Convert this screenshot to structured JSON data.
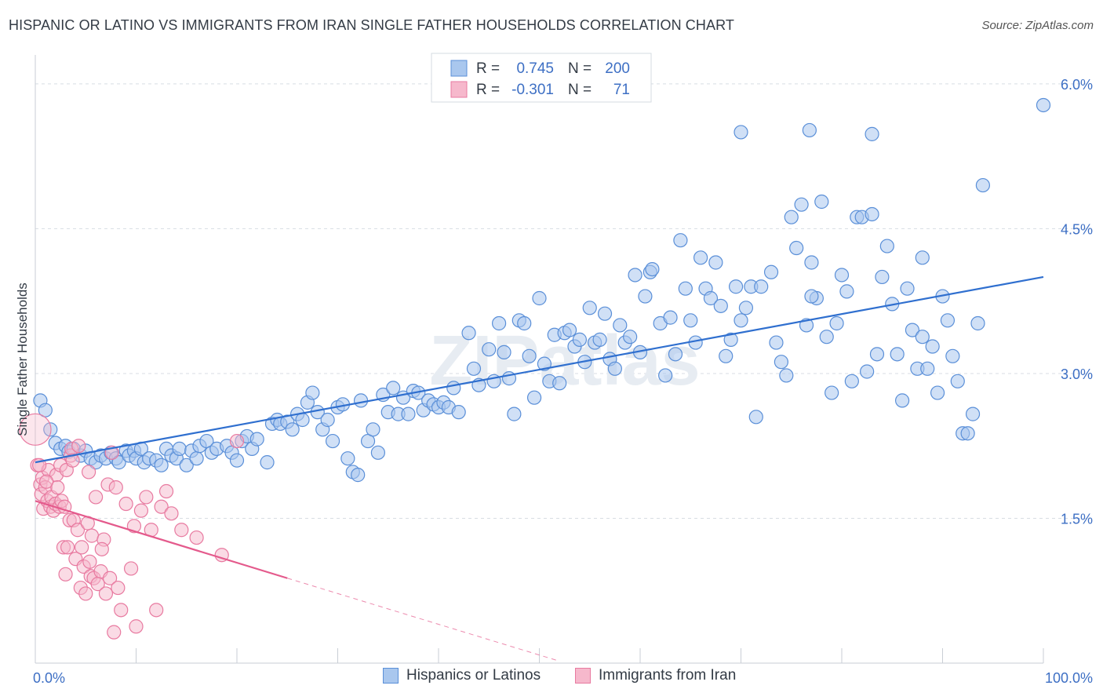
{
  "title": "HISPANIC OR LATINO VS IMMIGRANTS FROM IRAN SINGLE FATHER HOUSEHOLDS CORRELATION CHART",
  "source": "Source: ZipAtlas.com",
  "watermark": "ZIPatlas",
  "colors": {
    "blue_fill": "#a9c7ee",
    "blue_stroke": "#5a8fd8",
    "blue_line": "#2f6fcf",
    "pink_fill": "#f6b8cc",
    "pink_stroke": "#e87aa0",
    "pink_line": "#e45a8c",
    "axis_label": "#3d6fc4",
    "grid": "#d8dde3"
  },
  "legend_top": [
    {
      "r_label": "R =",
      "r_value": "0.745",
      "n_label": "N =",
      "n_value": "200",
      "series": "blue"
    },
    {
      "r_label": "R =",
      "r_value": "-0.301",
      "n_label": "N =",
      "n_value": "71",
      "series": "pink"
    }
  ],
  "legend_bottom": [
    {
      "label": "Hispanics or Latinos",
      "series": "blue"
    },
    {
      "label": "Immigrants from Iran",
      "series": "pink"
    }
  ],
  "chart_data": {
    "type": "scatter",
    "title": "HISPANIC OR LATINO VS IMMIGRANTS FROM IRAN SINGLE FATHER HOUSEHOLDS CORRELATION CHART",
    "xlabel": "",
    "ylabel": "Single Father Households",
    "xlim": [
      0,
      100
    ],
    "ylim": [
      0,
      6.3
    ],
    "x_tick_labels": [
      "0.0%",
      "100.0%"
    ],
    "y_ticks": [
      1.5,
      3.0,
      4.5,
      6.0
    ],
    "y_tick_labels": [
      "1.5%",
      "3.0%",
      "4.5%",
      "6.0%"
    ],
    "grid": true,
    "legend_position": "top-center",
    "series": [
      {
        "name": "Hispanics or Latinos",
        "color": "#a9c7ee",
        "trend": {
          "x": [
            0,
            100
          ],
          "y": [
            2.08,
            4.0
          ]
        },
        "points": [
          [
            0.5,
            2.72
          ],
          [
            1,
            2.62
          ],
          [
            1.5,
            2.42
          ],
          [
            2,
            2.28
          ],
          [
            2.5,
            2.22
          ],
          [
            3,
            2.25
          ],
          [
            3.3,
            2.19
          ],
          [
            3.8,
            2.22
          ],
          [
            4.5,
            2.15
          ],
          [
            5,
            2.2
          ],
          [
            5.5,
            2.12
          ],
          [
            6,
            2.08
          ],
          [
            6.5,
            2.15
          ],
          [
            7,
            2.12
          ],
          [
            7.5,
            2.18
          ],
          [
            8,
            2.12
          ],
          [
            8.3,
            2.08
          ],
          [
            9,
            2.2
          ],
          [
            9.3,
            2.15
          ],
          [
            9.8,
            2.2
          ],
          [
            10,
            2.12
          ],
          [
            10.5,
            2.22
          ],
          [
            10.8,
            2.08
          ],
          [
            11.3,
            2.12
          ],
          [
            12,
            2.1
          ],
          [
            12.5,
            2.05
          ],
          [
            13,
            2.22
          ],
          [
            13.5,
            2.15
          ],
          [
            14,
            2.12
          ],
          [
            14.3,
            2.22
          ],
          [
            15,
            2.05
          ],
          [
            15.5,
            2.2
          ],
          [
            16,
            2.12
          ],
          [
            16.3,
            2.25
          ],
          [
            17,
            2.3
          ],
          [
            17.5,
            2.18
          ],
          [
            18,
            2.22
          ],
          [
            19,
            2.25
          ],
          [
            19.5,
            2.18
          ],
          [
            20,
            2.1
          ],
          [
            20.5,
            2.3
          ],
          [
            21,
            2.35
          ],
          [
            21.5,
            2.22
          ],
          [
            22,
            2.32
          ],
          [
            23,
            2.08
          ],
          [
            23.5,
            2.48
          ],
          [
            24,
            2.52
          ],
          [
            24.3,
            2.48
          ],
          [
            25,
            2.5
          ],
          [
            25.5,
            2.42
          ],
          [
            26,
            2.58
          ],
          [
            26.5,
            2.52
          ],
          [
            27,
            2.7
          ],
          [
            27.5,
            2.8
          ],
          [
            28,
            2.6
          ],
          [
            28.5,
            2.42
          ],
          [
            29,
            2.52
          ],
          [
            29.5,
            2.3
          ],
          [
            30,
            2.65
          ],
          [
            30.5,
            2.68
          ],
          [
            31,
            2.12
          ],
          [
            31.5,
            1.98
          ],
          [
            32,
            1.95
          ],
          [
            32.3,
            2.72
          ],
          [
            33,
            2.3
          ],
          [
            33.5,
            2.42
          ],
          [
            34,
            2.18
          ],
          [
            34.5,
            2.78
          ],
          [
            35,
            2.6
          ],
          [
            35.5,
            2.85
          ],
          [
            36,
            2.58
          ],
          [
            36.5,
            2.75
          ],
          [
            37,
            2.58
          ],
          [
            37.5,
            2.82
          ],
          [
            38,
            2.8
          ],
          [
            38.5,
            2.62
          ],
          [
            39,
            2.72
          ],
          [
            39.5,
            2.68
          ],
          [
            40,
            2.65
          ],
          [
            40.5,
            2.7
          ],
          [
            41,
            2.65
          ],
          [
            41.5,
            2.85
          ],
          [
            42,
            2.6
          ],
          [
            43,
            3.42
          ],
          [
            43.5,
            3.05
          ],
          [
            44,
            2.88
          ],
          [
            45,
            3.25
          ],
          [
            45.5,
            2.92
          ],
          [
            46,
            3.52
          ],
          [
            46.5,
            3.22
          ],
          [
            47,
            2.95
          ],
          [
            47.5,
            2.58
          ],
          [
            48,
            3.55
          ],
          [
            48.5,
            3.52
          ],
          [
            49,
            3.18
          ],
          [
            49.5,
            2.75
          ],
          [
            50,
            3.78
          ],
          [
            50.5,
            3.1
          ],
          [
            51,
            2.92
          ],
          [
            51.5,
            3.4
          ],
          [
            52,
            2.9
          ],
          [
            52.5,
            3.42
          ],
          [
            53,
            3.45
          ],
          [
            53.5,
            3.28
          ],
          [
            54,
            3.35
          ],
          [
            54.5,
            3.12
          ],
          [
            55,
            3.68
          ],
          [
            55.5,
            3.32
          ],
          [
            56,
            3.35
          ],
          [
            56.5,
            3.62
          ],
          [
            57,
            3.15
          ],
          [
            57.5,
            3.05
          ],
          [
            58,
            3.5
          ],
          [
            58.5,
            3.32
          ],
          [
            59,
            3.38
          ],
          [
            59.5,
            4.02
          ],
          [
            60,
            3.22
          ],
          [
            61,
            4.05
          ],
          [
            61.2,
            4.08
          ],
          [
            62,
            3.52
          ],
          [
            62.5,
            2.98
          ],
          [
            63,
            3.58
          ],
          [
            63.5,
            3.2
          ],
          [
            64,
            4.38
          ],
          [
            64.5,
            3.88
          ],
          [
            65,
            3.55
          ],
          [
            65.5,
            3.32
          ],
          [
            66,
            4.2
          ],
          [
            66.5,
            3.88
          ],
          [
            67,
            3.78
          ],
          [
            67.5,
            4.15
          ],
          [
            68,
            3.7
          ],
          [
            68.5,
            3.18
          ],
          [
            69,
            3.35
          ],
          [
            69.5,
            3.9
          ],
          [
            70,
            3.55
          ],
          [
            70.5,
            3.68
          ],
          [
            71,
            3.9
          ],
          [
            71.5,
            2.55
          ],
          [
            72,
            3.9
          ],
          [
            73,
            4.05
          ],
          [
            73.5,
            3.32
          ],
          [
            74,
            3.12
          ],
          [
            74.5,
            2.98
          ],
          [
            75,
            4.62
          ],
          [
            75.5,
            4.3
          ],
          [
            76,
            4.75
          ],
          [
            76.5,
            3.5
          ],
          [
            77,
            4.15
          ],
          [
            77.5,
            3.78
          ],
          [
            78,
            4.78
          ],
          [
            78.5,
            3.38
          ],
          [
            79,
            2.8
          ],
          [
            79.5,
            3.52
          ],
          [
            80,
            4.02
          ],
          [
            80.5,
            3.85
          ],
          [
            81,
            2.92
          ],
          [
            81.5,
            4.62
          ],
          [
            82,
            4.62
          ],
          [
            82.5,
            3.02
          ],
          [
            83,
            4.65
          ],
          [
            83.5,
            3.2
          ],
          [
            84,
            4.0
          ],
          [
            84.5,
            4.32
          ],
          [
            85,
            3.72
          ],
          [
            85.5,
            3.2
          ],
          [
            86,
            2.72
          ],
          [
            86.5,
            3.88
          ],
          [
            87,
            3.45
          ],
          [
            87.5,
            3.05
          ],
          [
            88,
            3.38
          ],
          [
            88.5,
            3.05
          ],
          [
            89,
            3.28
          ],
          [
            89.5,
            2.8
          ],
          [
            90,
            3.8
          ],
          [
            90.5,
            3.55
          ],
          [
            91,
            3.18
          ],
          [
            91.5,
            2.92
          ],
          [
            92,
            2.38
          ],
          [
            92.5,
            2.38
          ],
          [
            93,
            2.58
          ],
          [
            93.5,
            3.52
          ],
          [
            70,
            5.5
          ],
          [
            83,
            5.48
          ],
          [
            100,
            5.78
          ],
          [
            76.8,
            5.52
          ],
          [
            94,
            4.95
          ],
          [
            88,
            4.2
          ],
          [
            60.5,
            3.8
          ],
          [
            77,
            3.8
          ]
        ]
      },
      {
        "name": "Immigrants from Iran",
        "color": "#f6b8cc",
        "trend": {
          "x": [
            0,
            25
          ],
          "y": [
            1.68,
            0.88
          ]
        },
        "trend_dashed": {
          "x": [
            25,
            52
          ],
          "y": [
            0.88,
            0.02
          ]
        },
        "points": [
          [
            0,
            2.42
          ],
          [
            0.2,
            2.05
          ],
          [
            0.5,
            1.85
          ],
          [
            0.6,
            1.75
          ],
          [
            0.7,
            1.92
          ],
          [
            0.8,
            1.6
          ],
          [
            1,
            1.82
          ],
          [
            1.2,
            1.68
          ],
          [
            1.3,
            2.0
          ],
          [
            1.5,
            1.62
          ],
          [
            1.6,
            1.72
          ],
          [
            1.8,
            1.58
          ],
          [
            2,
            1.65
          ],
          [
            2.1,
            1.95
          ],
          [
            2.2,
            1.82
          ],
          [
            2.4,
            1.62
          ],
          [
            2.5,
            2.05
          ],
          [
            2.6,
            1.68
          ],
          [
            2.8,
            1.2
          ],
          [
            3,
            0.92
          ],
          [
            3.1,
            2.0
          ],
          [
            3.2,
            1.2
          ],
          [
            3.4,
            1.48
          ],
          [
            3.5,
            2.15
          ],
          [
            3.6,
            2.22
          ],
          [
            3.8,
            1.48
          ],
          [
            4,
            1.08
          ],
          [
            4.2,
            1.38
          ],
          [
            4.3,
            2.25
          ],
          [
            4.5,
            0.78
          ],
          [
            4.6,
            1.2
          ],
          [
            4.8,
            1.0
          ],
          [
            5,
            0.72
          ],
          [
            5.2,
            1.45
          ],
          [
            5.4,
            1.05
          ],
          [
            5.5,
            0.9
          ],
          [
            5.6,
            1.32
          ],
          [
            5.8,
            0.88
          ],
          [
            6,
            1.72
          ],
          [
            6.2,
            0.82
          ],
          [
            6.5,
            0.95
          ],
          [
            6.8,
            1.28
          ],
          [
            7,
            0.72
          ],
          [
            7.2,
            1.85
          ],
          [
            7.4,
            0.88
          ],
          [
            7.6,
            2.18
          ],
          [
            7.8,
            0.32
          ],
          [
            8,
            1.82
          ],
          [
            8.2,
            0.78
          ],
          [
            8.5,
            0.55
          ],
          [
            9,
            1.65
          ],
          [
            9.5,
            0.98
          ],
          [
            10,
            0.38
          ],
          [
            10.5,
            1.58
          ],
          [
            11,
            1.72
          ],
          [
            11.5,
            1.38
          ],
          [
            12,
            0.55
          ],
          [
            12.5,
            1.62
          ],
          [
            13,
            1.78
          ],
          [
            13.5,
            1.55
          ],
          [
            14.5,
            1.38
          ],
          [
            16,
            1.3
          ],
          [
            18.5,
            1.12
          ],
          [
            20,
            2.3
          ],
          [
            1.1,
            1.88
          ],
          [
            2.9,
            1.62
          ],
          [
            5.3,
            1.98
          ],
          [
            3.7,
            2.1
          ],
          [
            0.4,
            2.05
          ],
          [
            6.6,
            1.18
          ],
          [
            9.8,
            1.42
          ]
        ]
      }
    ]
  }
}
